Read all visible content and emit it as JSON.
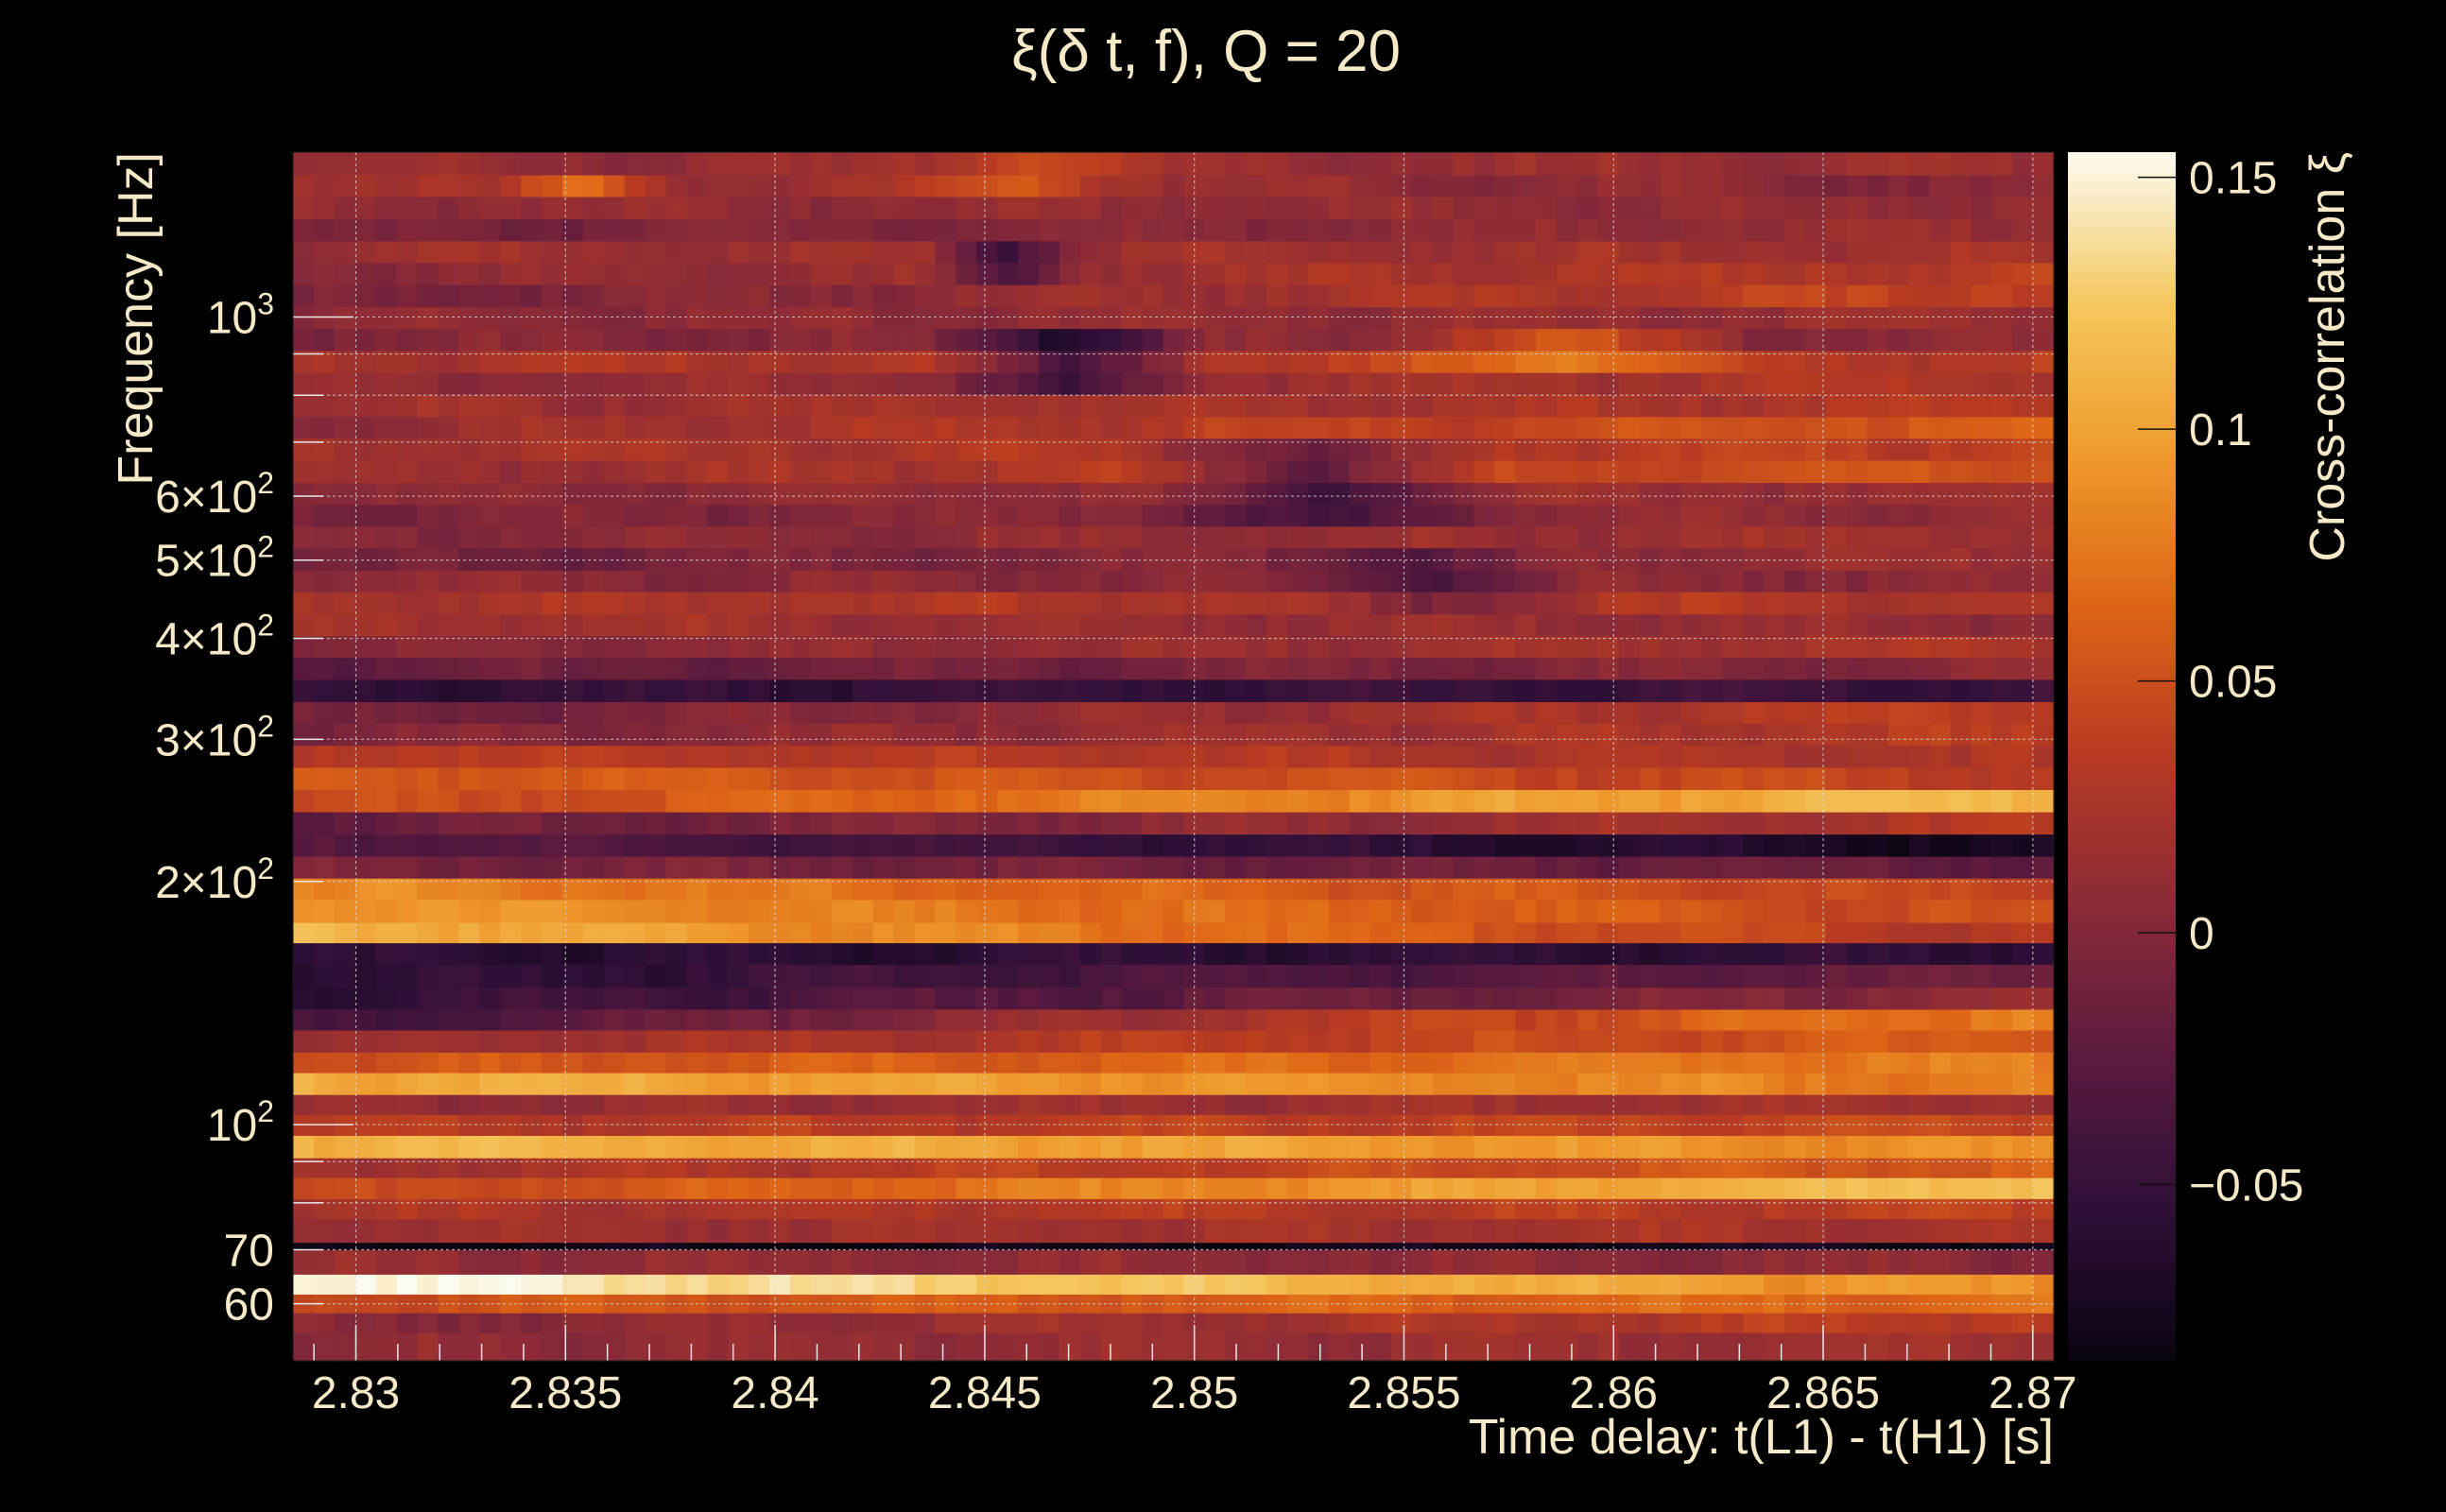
{
  "chart_data": {
    "type": "heatmap",
    "title": "ξ(δ t, f), Q = 20",
    "xlabel": "Time delay: t(L1) - t(H1) [s]",
    "ylabel": "Frequency [Hz]",
    "colorbar_label": "Cross-correlation ξ",
    "xlim": [
      2.8285,
      2.8705
    ],
    "ylim": [
      51,
      1600
    ],
    "y_scale": "log",
    "grid": true,
    "x_ticks": [
      {
        "value": 2.83,
        "label": "2.83"
      },
      {
        "value": 2.835,
        "label": "2.835"
      },
      {
        "value": 2.84,
        "label": "2.84"
      },
      {
        "value": 2.845,
        "label": "2.845"
      },
      {
        "value": 2.85,
        "label": "2.85"
      },
      {
        "value": 2.855,
        "label": "2.855"
      },
      {
        "value": 2.86,
        "label": "2.86"
      },
      {
        "value": 2.865,
        "label": "2.865"
      },
      {
        "value": 2.87,
        "label": "2.87"
      }
    ],
    "y_ticks": [
      {
        "value": 60,
        "base": "60",
        "exp": ""
      },
      {
        "value": 70,
        "base": "70",
        "exp": ""
      },
      {
        "value": 100,
        "base": "10",
        "exp": "2"
      },
      {
        "value": 200,
        "base": "2×10",
        "exp": "2"
      },
      {
        "value": 300,
        "base": "3×10",
        "exp": "2"
      },
      {
        "value": 400,
        "base": "4×10",
        "exp": "2"
      },
      {
        "value": 500,
        "base": "5×10",
        "exp": "2"
      },
      {
        "value": 600,
        "base": "6×10",
        "exp": "2"
      },
      {
        "value": 1000,
        "base": "10",
        "exp": "3"
      }
    ],
    "colorbar": {
      "range": [
        -0.085,
        0.155
      ],
      "ticks": [
        {
          "value": -0.05,
          "label": "−0.05"
        },
        {
          "value": 0,
          "label": "0"
        },
        {
          "value": 0.05,
          "label": "0.05"
        },
        {
          "value": 0.1,
          "label": "0.1"
        },
        {
          "value": 0.15,
          "label": "0.15"
        }
      ],
      "colormap": "inferno-like",
      "colors": [
        "#0a0410",
        "#2e0f38",
        "#5a1a3e",
        "#8a2a38",
        "#b63a22",
        "#dd6416",
        "#ef9a2c",
        "#f4c75e",
        "#fcfbf0"
      ]
    },
    "time_columns": 85,
    "rows": [
      {
        "f_low": 51,
        "f_high": 55.3,
        "start": 0.005,
        "end": 0.02
      },
      {
        "f_low": 55.3,
        "f_high": 58.5,
        "start": 0.0,
        "end": 0.04
      },
      {
        "f_low": 58.5,
        "f_high": 61.7,
        "start": 0.05,
        "end": 0.07
      },
      {
        "f_low": 61.7,
        "f_high": 65.3,
        "start": 0.155,
        "end": 0.085
      },
      {
        "f_low": 65.3,
        "f_high": 70,
        "start": 0.01,
        "end": 0.005
      },
      {
        "f_low": 70,
        "f_high": 71.5,
        "start": -0.085,
        "end": -0.075
      },
      {
        "f_low": 71.5,
        "f_high": 76.5,
        "start": 0.015,
        "end": 0.025
      },
      {
        "f_low": 76.5,
        "f_high": 81,
        "start": 0.025,
        "end": 0.04
      },
      {
        "f_low": 81,
        "f_high": 86,
        "start": 0.04,
        "end": 0.125
      },
      {
        "f_low": 86,
        "f_high": 91,
        "start": 0.02,
        "end": 0.06
      },
      {
        "f_low": 91,
        "f_high": 97,
        "start": 0.115,
        "end": 0.085
      },
      {
        "f_low": 97,
        "f_high": 103,
        "start": 0.03,
        "end": 0.045
      },
      {
        "f_low": 103,
        "f_high": 109,
        "start": 0.01,
        "end": 0.02
      },
      {
        "f_low": 109,
        "f_high": 116,
        "start": 0.11,
        "end": 0.075
      },
      {
        "f_low": 116,
        "f_high": 123,
        "start": 0.05,
        "end": 0.08
      },
      {
        "f_low": 123,
        "f_high": 131,
        "start": 0.01,
        "end": 0.06
      },
      {
        "f_low": 131,
        "f_high": 139,
        "start": -0.045,
        "end": 0.085
      },
      {
        "f_low": 139,
        "f_high": 148,
        "start": -0.055,
        "end": 0.01
      },
      {
        "f_low": 148,
        "f_high": 158,
        "start": -0.06,
        "end": -0.015
      },
      {
        "f_low": 158,
        "f_high": 168,
        "start": -0.06,
        "end": -0.055
      },
      {
        "f_low": 168,
        "f_high": 178,
        "start": 0.115,
        "end": 0.03
      },
      {
        "f_low": 178,
        "f_high": 190,
        "start": 0.095,
        "end": 0.045
      },
      {
        "f_low": 190,
        "f_high": 202,
        "start": 0.085,
        "end": 0.04
      },
      {
        "f_low": 202,
        "f_high": 215,
        "start": -0.005,
        "end": -0.02
      },
      {
        "f_low": 215,
        "f_high": 229,
        "start": -0.025,
        "end": -0.075
      },
      {
        "f_low": 229,
        "f_high": 244,
        "start": -0.02,
        "end": 0.03
      },
      {
        "f_low": 244,
        "f_high": 260,
        "start": 0.04,
        "end": 0.12
      },
      {
        "f_low": 260,
        "f_high": 277,
        "start": 0.06,
        "end": 0.04
      },
      {
        "f_low": 277,
        "f_high": 295,
        "start": 0.035,
        "end": 0.025
      },
      {
        "f_low": 295,
        "f_high": 314,
        "start": -0.005,
        "end": 0.035
      },
      {
        "f_low": 314,
        "f_high": 334,
        "start": -0.015,
        "end": 0.04
      },
      {
        "f_low": 334,
        "f_high": 356,
        "start": -0.055,
        "end": -0.045
      },
      {
        "f_low": 356,
        "f_high": 379,
        "start": -0.02,
        "end": 0.005
      },
      {
        "f_low": 379,
        "f_high": 403,
        "start": 0.0,
        "end": 0.025
      },
      {
        "f_low": 403,
        "f_high": 429,
        "start": 0.02,
        "end": 0.01
      },
      {
        "f_low": 429,
        "f_high": 457,
        "start": 0.025,
        "end": 0.03
      },
      {
        "f_low": 457,
        "f_high": 486,
        "start": 0.005,
        "end": 0.005
      },
      {
        "f_low": 486,
        "f_high": 518,
        "start": -0.015,
        "end": 0.015
      },
      {
        "f_low": 518,
        "f_high": 551,
        "start": 0.0,
        "end": 0.02
      },
      {
        "f_low": 551,
        "f_high": 586,
        "start": -0.005,
        "end": 0.01
      },
      {
        "f_low": 586,
        "f_high": 624,
        "start": 0.005,
        "end": 0.015
      },
      {
        "f_low": 624,
        "f_high": 665,
        "start": 0.01,
        "end": 0.055
      },
      {
        "f_low": 665,
        "f_high": 708,
        "start": 0.02,
        "end": 0.04
      },
      {
        "f_low": 708,
        "f_high": 753,
        "start": 0.01,
        "end": 0.06
      },
      {
        "f_low": 753,
        "f_high": 802,
        "start": 0.015,
        "end": 0.03
      },
      {
        "f_low": 802,
        "f_high": 854,
        "start": 0.005,
        "end": 0.03
      },
      {
        "f_low": 854,
        "f_high": 909,
        "start": 0.025,
        "end": 0.035
      },
      {
        "f_low": 909,
        "f_high": 968,
        "start": 0.0,
        "end": 0.005
      },
      {
        "f_low": 968,
        "f_high": 1030,
        "start": 0.005,
        "end": 0.015
      },
      {
        "f_low": 1030,
        "f_high": 1097,
        "start": -0.01,
        "end": 0.045
      },
      {
        "f_low": 1097,
        "f_high": 1168,
        "start": 0.005,
        "end": 0.035
      },
      {
        "f_low": 1168,
        "f_high": 1243,
        "start": 0.015,
        "end": 0.02
      },
      {
        "f_low": 1243,
        "f_high": 1324,
        "start": -0.01,
        "end": 0.015
      },
      {
        "f_low": 1324,
        "f_high": 1410,
        "start": 0.01,
        "end": 0.01
      },
      {
        "f_low": 1410,
        "f_high": 1500,
        "start": 0.025,
        "end": 0.0
      },
      {
        "f_low": 1500,
        "f_high": 1600,
        "start": 0.01,
        "end": 0.015
      }
    ],
    "blobs": [
      {
        "f_low": 1100,
        "f_high": 1250,
        "x_from": 2.8435,
        "x_to": 2.8475,
        "delta": -0.05
      },
      {
        "f_low": 780,
        "f_high": 960,
        "x_from": 2.8435,
        "x_to": 2.8505,
        "delta": -0.055
      },
      {
        "f_low": 560,
        "f_high": 720,
        "x_from": 2.8485,
        "x_to": 2.8575,
        "delta": -0.045
      },
      {
        "f_low": 1450,
        "f_high": 1600,
        "x_from": 2.8425,
        "x_to": 2.8495,
        "delta": 0.035
      },
      {
        "f_low": 860,
        "f_high": 960,
        "x_from": 2.8535,
        "x_to": 2.8635,
        "delta": 0.045
      },
      {
        "f_low": 430,
        "f_high": 520,
        "x_from": 2.8515,
        "x_to": 2.8595,
        "delta": -0.03
      },
      {
        "f_low": 1400,
        "f_high": 1500,
        "x_from": 2.8335,
        "x_to": 2.8375,
        "delta": 0.04
      }
    ]
  }
}
